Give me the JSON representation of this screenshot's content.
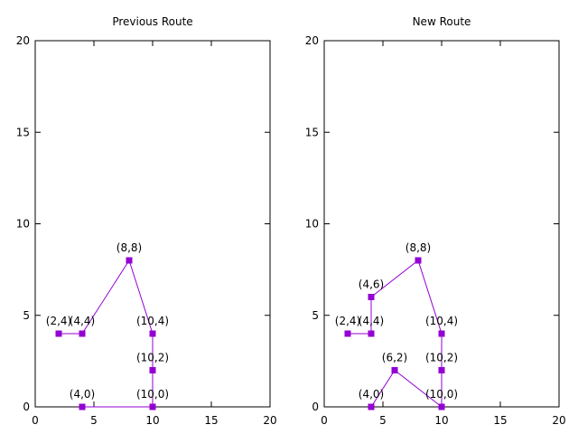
{
  "chart_data": [
    {
      "type": "line",
      "title": "Previous Route",
      "xlabel": "",
      "ylabel": "",
      "xlim": [
        0,
        20
      ],
      "ylim": [
        0,
        20
      ],
      "xticks": [
        0,
        5,
        10,
        15,
        20
      ],
      "yticks": [
        0,
        5,
        10,
        15,
        20
      ],
      "grid": false,
      "color": "#9400d3",
      "marker": "square",
      "series": [
        {
          "points": [
            {
              "x": 10,
              "y": 0,
              "label": "(10,0)"
            },
            {
              "x": 4,
              "y": 0,
              "label": "(4,0)"
            },
            {
              "x": 10,
              "y": 0,
              "label": ""
            },
            {
              "x": 10,
              "y": 2,
              "label": "(10,2)"
            },
            {
              "x": 10,
              "y": 4,
              "label": "(10,4)"
            },
            {
              "x": 8,
              "y": 8,
              "label": "(8,8)"
            },
            {
              "x": 4,
              "y": 4,
              "label": "(4,4)"
            },
            {
              "x": 2,
              "y": 4,
              "label": "(2,4)"
            }
          ]
        }
      ]
    },
    {
      "type": "line",
      "title": "New Route",
      "xlabel": "",
      "ylabel": "",
      "xlim": [
        0,
        20
      ],
      "ylim": [
        0,
        20
      ],
      "xticks": [
        0,
        5,
        10,
        15,
        20
      ],
      "yticks": [
        0,
        5,
        10,
        15,
        20
      ],
      "grid": false,
      "color": "#9400d3",
      "marker": "square",
      "series": [
        {
          "points": [
            {
              "x": 4,
              "y": 0,
              "label": "(4,0)"
            },
            {
              "x": 6,
              "y": 2,
              "label": "(6,2)"
            },
            {
              "x": 10,
              "y": 0,
              "label": "(10,0)"
            },
            {
              "x": 10,
              "y": 2,
              "label": "(10,2)"
            },
            {
              "x": 10,
              "y": 4,
              "label": "(10,4)"
            },
            {
              "x": 8,
              "y": 8,
              "label": "(8,8)"
            },
            {
              "x": 4,
              "y": 6,
              "label": "(4,6)"
            },
            {
              "x": 4,
              "y": 4,
              "label": "(4,4)"
            },
            {
              "x": 2,
              "y": 4,
              "label": "(2,4)"
            }
          ]
        }
      ]
    }
  ]
}
